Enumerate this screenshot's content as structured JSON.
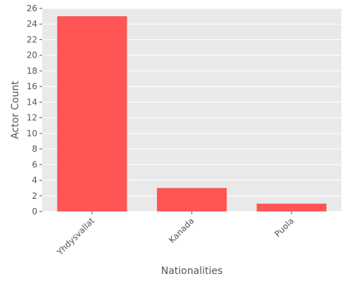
{
  "chart_data": {
    "type": "bar",
    "categories": [
      "Yhdysvallat",
      "Kanada",
      "Puola"
    ],
    "values": [
      25,
      3,
      1
    ],
    "xlabel": "Nationalities",
    "ylabel": "Actor Count",
    "ylim": [
      0,
      26
    ],
    "yticks": [
      0,
      2,
      4,
      6,
      8,
      10,
      12,
      14,
      16,
      18,
      20,
      22,
      24,
      26
    ],
    "grid": true,
    "bar_color": "#ff5555",
    "plot_background": "#e9e9e9",
    "grid_color": "#ffffff",
    "text_color": "#555555"
  }
}
